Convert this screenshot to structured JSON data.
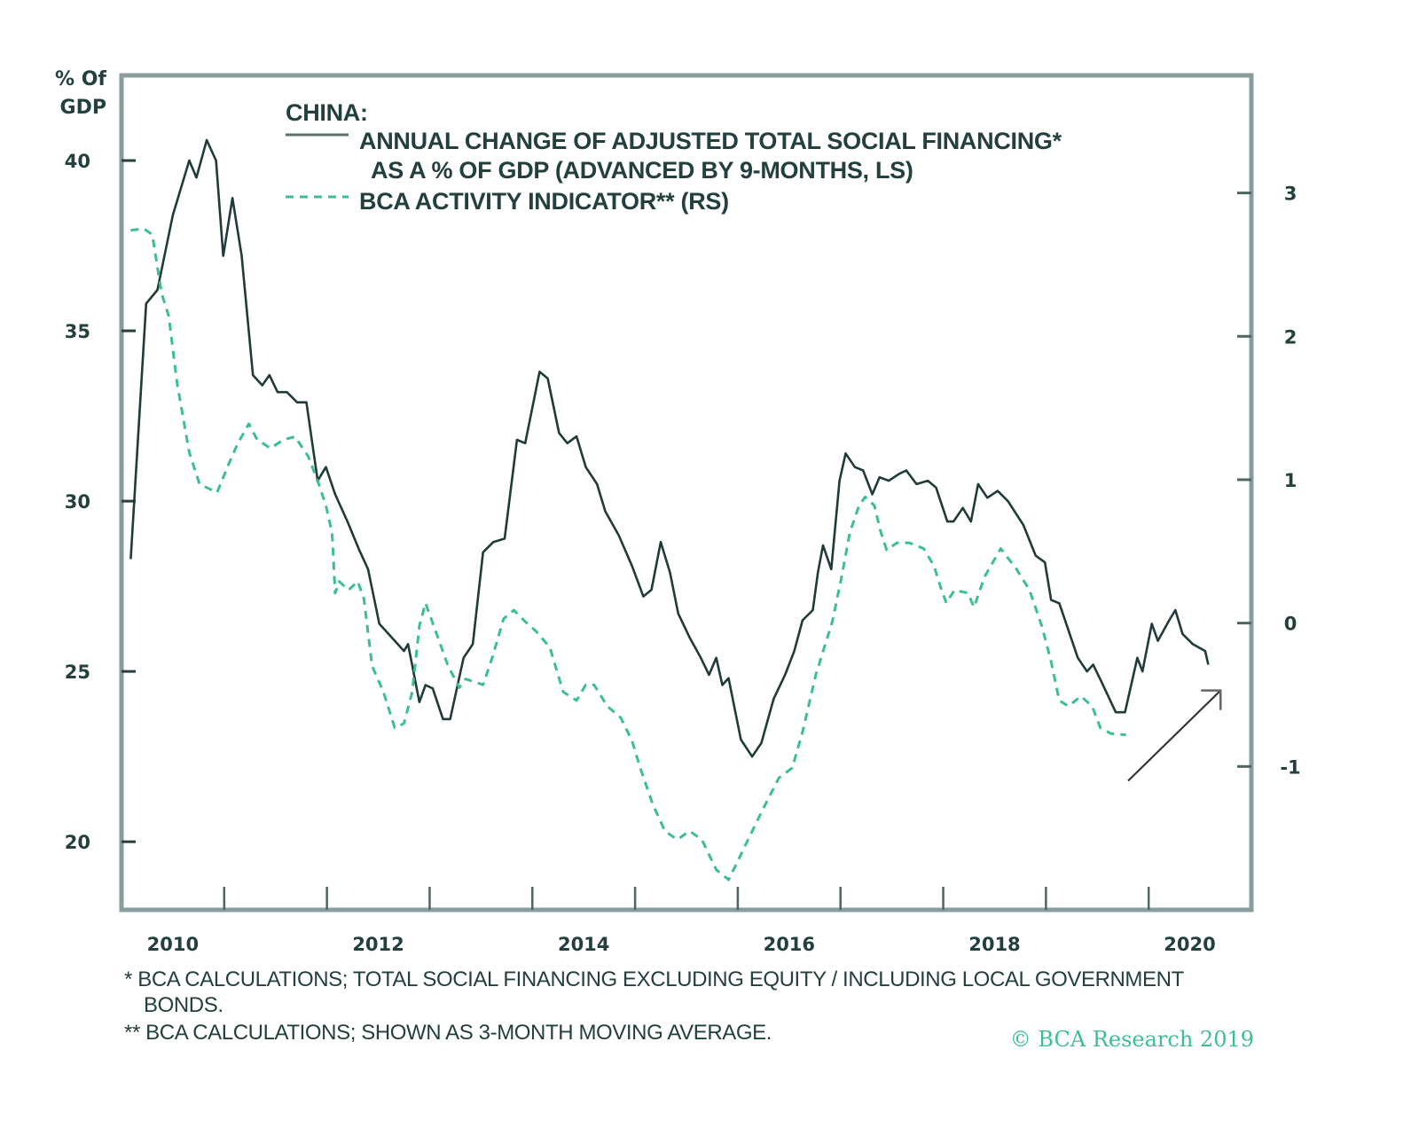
{
  "chart_data": {
    "type": "line",
    "title": "CHINA:",
    "left_axis": {
      "label_line1": "% Of",
      "label_line2": "GDP",
      "range": [
        18.0,
        42.5
      ],
      "ticks": [
        20,
        25,
        30,
        35,
        40
      ],
      "tick_labels": [
        "20",
        "25",
        "30",
        "35",
        "40"
      ]
    },
    "right_axis": {
      "range": [
        -2.0,
        3.82
      ],
      "ticks": [
        -1,
        0,
        1,
        2,
        3
      ],
      "tick_labels": [
        "-1",
        "0",
        "1",
        "2",
        "3"
      ]
    },
    "x_axis": {
      "range": [
        2010.0,
        2021.0
      ],
      "ticks": [
        2010,
        2011,
        2012,
        2013,
        2014,
        2015,
        2016,
        2017,
        2018,
        2019,
        2020,
        2021
      ],
      "labels": [
        {
          "text": "2010",
          "at": 2010.5
        },
        {
          "text": "2012",
          "at": 2012.5
        },
        {
          "text": "2014",
          "at": 2014.5
        },
        {
          "text": "2016",
          "at": 2016.5
        },
        {
          "text": "2018",
          "at": 2018.5
        },
        {
          "text": "2020",
          "at": 2020.4
        }
      ]
    },
    "grid": false,
    "legend": {
      "placement": "top-left",
      "title": "CHINA:",
      "entries": [
        {
          "line1": "ANNUAL CHANGE OF ADJUSTED TOTAL SOCIAL FINANCING*",
          "line2": "AS A % OF GDP (ADVANCED BY 9-MONTHS, LS)",
          "style": "solid"
        },
        {
          "line1": "BCA ACTIVITY INDICATOR** (RS)",
          "style": "dashed"
        }
      ]
    },
    "series": [
      {
        "name": "Annual change of adjusted total social financing as a % of GDP (advanced by 9-months, LS)",
        "axis": "left",
        "color": "#1f3b3a",
        "style": "solid",
        "x": [
          2010.09,
          2010.24,
          2010.35,
          2010.5,
          2010.66,
          2010.73,
          2010.83,
          2010.92,
          2010.99,
          2011.08,
          2011.17,
          2011.28,
          2011.37,
          2011.44,
          2011.52,
          2011.61,
          2011.71,
          2011.8,
          2011.91,
          2011.99,
          2012.08,
          2012.2,
          2012.31,
          2012.4,
          2012.51,
          2012.66,
          2012.75,
          2012.79,
          2012.9,
          2012.96,
          2013.03,
          2013.13,
          2013.2,
          2013.33,
          2013.42,
          2013.52,
          2013.62,
          2013.73,
          2013.85,
          2013.93,
          2014.07,
          2014.15,
          2014.26,
          2014.34,
          2014.43,
          2014.52,
          2014.63,
          2014.71,
          2014.84,
          2014.97,
          2015.08,
          2015.16,
          2015.25,
          2015.34,
          2015.42,
          2015.53,
          2015.64,
          2015.72,
          2015.79,
          2015.85,
          2015.91,
          2016.03,
          2016.14,
          2016.23,
          2016.35,
          2016.46,
          2016.55,
          2016.63,
          2016.73,
          2016.78,
          2016.83,
          2016.91,
          2016.99,
          2017.05,
          2017.14,
          2017.22,
          2017.31,
          2017.38,
          2017.47,
          2017.57,
          2017.64,
          2017.74,
          2017.85,
          2017.93,
          2018.04,
          2018.1,
          2018.19,
          2018.27,
          2018.34,
          2018.43,
          2018.53,
          2018.63,
          2018.78,
          2018.9,
          2018.99,
          2019.05,
          2019.13,
          2019.31,
          2019.4,
          2019.46,
          2019.54,
          2019.68,
          2019.77,
          2019.89,
          2019.94,
          2020.03,
          2020.09,
          2020.2,
          2020.26,
          2020.33,
          2020.43,
          2020.55,
          2020.58
        ],
        "y": [
          28.3,
          35.8,
          36.2,
          38.4,
          40.0,
          39.5,
          40.6,
          40.0,
          37.2,
          38.9,
          37.2,
          33.7,
          33.4,
          33.7,
          33.2,
          33.2,
          32.9,
          32.9,
          30.6,
          31.0,
          30.2,
          29.4,
          28.6,
          28.0,
          26.4,
          25.9,
          25.6,
          25.8,
          24.1,
          24.6,
          24.5,
          23.6,
          23.6,
          25.4,
          25.8,
          28.5,
          28.8,
          28.9,
          31.8,
          31.7,
          33.8,
          33.6,
          32.0,
          31.7,
          31.9,
          31.0,
          30.5,
          29.7,
          29.0,
          28.1,
          27.2,
          27.4,
          28.8,
          27.9,
          26.7,
          26.0,
          25.4,
          24.9,
          25.4,
          24.6,
          24.8,
          23.0,
          22.5,
          22.9,
          24.2,
          24.9,
          25.6,
          26.5,
          26.8,
          27.9,
          28.7,
          28.0,
          30.6,
          31.4,
          31.0,
          30.9,
          30.2,
          30.7,
          30.6,
          30.8,
          30.9,
          30.5,
          30.6,
          30.4,
          29.4,
          29.4,
          29.8,
          29.4,
          30.5,
          30.1,
          30.3,
          30.0,
          29.3,
          28.4,
          28.2,
          27.1,
          27.0,
          25.4,
          25.0,
          25.2,
          24.7,
          23.8,
          23.8,
          25.4,
          25.0,
          26.4,
          25.9,
          26.5,
          26.8,
          26.1,
          25.8,
          25.6,
          25.2
        ]
      },
      {
        "name": "BCA activity indicator (RS)",
        "axis": "right",
        "color": "#3cbf8e",
        "style": "dashed",
        "x": [
          2010.09,
          2010.22,
          2010.3,
          2010.39,
          2010.46,
          2010.54,
          2010.66,
          2010.76,
          2010.93,
          2011.05,
          2011.13,
          2011.24,
          2011.32,
          2011.45,
          2011.58,
          2011.69,
          2011.82,
          2011.92,
          2011.99,
          2012.05,
          2012.08,
          2012.12,
          2012.21,
          2012.3,
          2012.36,
          2012.44,
          2012.55,
          2012.66,
          2012.75,
          2012.83,
          2012.9,
          2012.96,
          2013.07,
          2013.18,
          2013.29,
          2013.35,
          2013.52,
          2013.61,
          2013.72,
          2013.82,
          2013.93,
          2014.04,
          2014.17,
          2014.3,
          2014.43,
          2014.52,
          2014.6,
          2014.73,
          2014.86,
          2014.97,
          2015.05,
          2015.17,
          2015.29,
          2015.41,
          2015.53,
          2015.65,
          2015.79,
          2015.91,
          2016.0,
          2016.1,
          2016.25,
          2016.4,
          2016.53,
          2016.63,
          2016.76,
          2016.92,
          2017.01,
          2017.09,
          2017.18,
          2017.24,
          2017.33,
          2017.39,
          2017.45,
          2017.55,
          2017.67,
          2017.81,
          2017.91,
          2017.97,
          2018.03,
          2018.11,
          2018.24,
          2018.3,
          2018.4,
          2018.56,
          2018.71,
          2018.84,
          2018.96,
          2019.05,
          2019.13,
          2019.22,
          2019.34,
          2019.45,
          2019.53,
          2019.63,
          2019.78
        ],
        "y": [
          2.74,
          2.75,
          2.71,
          2.3,
          2.14,
          1.68,
          1.19,
          0.97,
          0.91,
          1.12,
          1.25,
          1.39,
          1.28,
          1.22,
          1.28,
          1.3,
          1.16,
          0.97,
          0.82,
          0.63,
          0.21,
          0.29,
          0.23,
          0.29,
          0.17,
          -0.3,
          -0.48,
          -0.73,
          -0.7,
          -0.48,
          -0.02,
          0.14,
          -0.08,
          -0.3,
          -0.45,
          -0.39,
          -0.43,
          -0.24,
          0.03,
          0.09,
          0.01,
          -0.06,
          -0.17,
          -0.48,
          -0.54,
          -0.43,
          -0.43,
          -0.58,
          -0.66,
          -0.82,
          -1.01,
          -1.26,
          -1.45,
          -1.51,
          -1.45,
          -1.51,
          -1.72,
          -1.79,
          -1.66,
          -1.51,
          -1.29,
          -1.08,
          -1.01,
          -0.76,
          -0.36,
          0.01,
          0.32,
          0.63,
          0.82,
          0.88,
          0.82,
          0.64,
          0.51,
          0.56,
          0.56,
          0.52,
          0.4,
          0.26,
          0.14,
          0.23,
          0.21,
          0.11,
          0.32,
          0.52,
          0.38,
          0.23,
          -0.02,
          -0.27,
          -0.54,
          -0.58,
          -0.51,
          -0.58,
          -0.73,
          -0.77,
          -0.78
        ]
      }
    ],
    "annotations": [
      {
        "type": "arrow",
        "direction": "up-right",
        "from": [
          2019.8,
          -1.1
        ],
        "to": [
          2020.7,
          -0.47
        ],
        "axis": "right",
        "color": "#333333"
      }
    ],
    "footnotes": [
      "*  BCA CALCULATIONS; TOTAL SOCIAL FINANCING EXCLUDING EQUITY / INCLUDING LOCAL GOVERNMENT",
      "BONDS.",
      "** BCA CALCULATIONS; SHOWN AS 3-MONTH MOVING AVERAGE."
    ],
    "copyright": "© BCA Research 2019"
  },
  "colors": {
    "frame": "#8a9d9d",
    "text": "#23403e",
    "solid_series": "#1f3b3a",
    "dashed_series": "#3cbf8e",
    "copyright": "#3cbf8e"
  }
}
